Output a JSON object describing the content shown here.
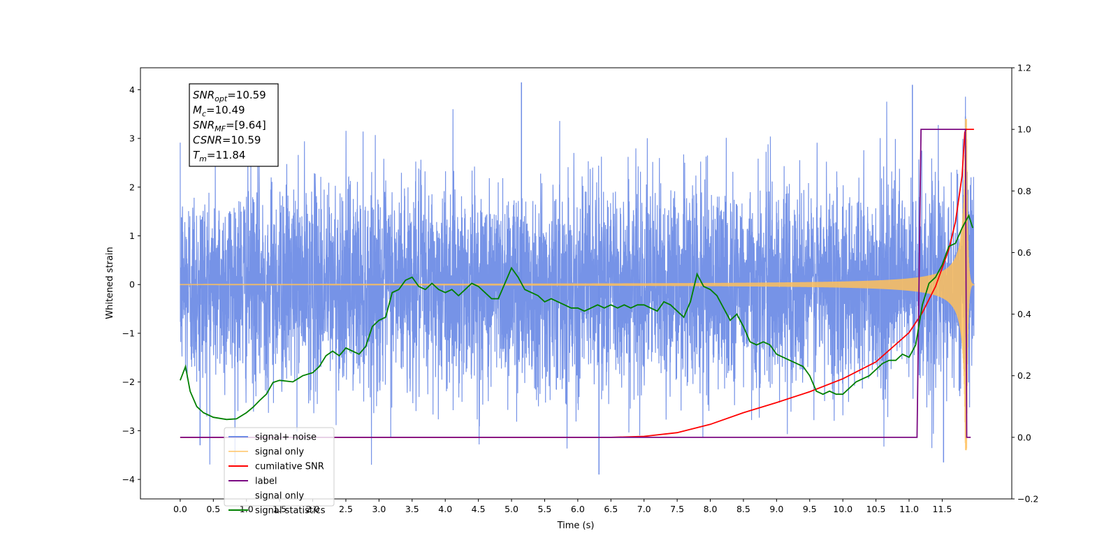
{
  "chart_data": {
    "type": "line",
    "xlabel": "Time (s)",
    "ylabel": "Whitened strain",
    "xlim": [
      -0.6,
      12.55
    ],
    "ylim": [
      -4.4,
      4.45
    ],
    "ylim_right": [
      -0.2,
      1.2
    ],
    "xticks": [
      "0.0",
      "0.5",
      "1.0",
      "1.5",
      "2.0",
      "2.5",
      "3.0",
      "3.5",
      "4.0",
      "4.5",
      "5.0",
      "5.5",
      "6.0",
      "6.5",
      "7.0",
      "7.5",
      "8.0",
      "8.5",
      "9.0",
      "9.5",
      "10.0",
      "10.5",
      "11.0",
      "11.5"
    ],
    "yticks": [
      "4",
      "3",
      "2",
      "1",
      "0",
      "−1",
      "−2",
      "−3",
      "−4"
    ],
    "yticks_right": [
      "1.2",
      "1.0",
      "0.8",
      "0.6",
      "0.4",
      "0.2",
      "0.0",
      "−0.2"
    ],
    "grid": false,
    "legend_position": "lower-left",
    "annotation": {
      "lines": [
        {
          "base": "SNR",
          "sub": "opt",
          "value": "=10.59"
        },
        {
          "base": "M",
          "sub": "c",
          "value": "=10.49"
        },
        {
          "base": "SNR",
          "sub": "MF",
          "value": "=[9.64]"
        },
        {
          "base": "CSNR",
          "sub": "",
          "value": "=10.59"
        },
        {
          "base": "T",
          "sub": "m",
          "value": "=11.84"
        }
      ]
    },
    "series": [
      {
        "name": "signal+ noise",
        "axis": "left",
        "color": "#6f8de6",
        "kind": "noise",
        "sigma": 1.0,
        "peak_markers": [
          {
            "x": 6.32,
            "y": -3.9
          },
          {
            "x": 11.05,
            "y": 4.1
          },
          {
            "x": 5.15,
            "y": 4.15
          },
          {
            "x": 11.85,
            "y": 3.45
          },
          {
            "x": 11.52,
            "y": -3.65
          },
          {
            "x": 0.3,
            "y": -3.3
          }
        ]
      },
      {
        "name": "signal only",
        "axis": "left",
        "color": "#ffbf5a",
        "kind": "chirp",
        "t0": 0.0,
        "tc": 11.87,
        "t_end": 11.98,
        "amp_end": 3.4
      },
      {
        "name": "cumilative SNR",
        "axis": "right",
        "color": "#ff0000",
        "x": [
          0.0,
          6.5,
          7.0,
          7.5,
          8.0,
          8.5,
          9.0,
          9.5,
          10.0,
          10.5,
          11.0,
          11.2,
          11.4,
          11.6,
          11.7,
          11.8,
          11.84,
          11.86,
          11.98
        ],
        "values": [
          0.0,
          0.0,
          0.003,
          0.015,
          0.042,
          0.08,
          0.113,
          0.148,
          0.19,
          0.245,
          0.34,
          0.405,
          0.49,
          0.61,
          0.7,
          0.85,
          0.99,
          1.0,
          1.0
        ]
      },
      {
        "name": "label",
        "axis": "right",
        "color": "#7b0a82",
        "x": [
          0.0,
          11.12,
          11.18,
          11.85,
          11.87,
          11.93
        ],
        "values": [
          0.0,
          0.0,
          1.0,
          1.0,
          0.0,
          0.0
        ]
      },
      {
        "name": "signal only",
        "axis": "right",
        "color": "#ffffff",
        "values": []
      },
      {
        "name": "signal statistics",
        "axis": "right",
        "color": "#008000",
        "x": [
          0.0,
          0.08,
          0.15,
          0.25,
          0.35,
          0.5,
          0.7,
          0.85,
          1.0,
          1.1,
          1.2,
          1.3,
          1.4,
          1.5,
          1.7,
          1.85,
          2.0,
          2.1,
          2.2,
          2.3,
          2.4,
          2.5,
          2.6,
          2.7,
          2.8,
          2.9,
          3.0,
          3.1,
          3.2,
          3.3,
          3.4,
          3.5,
          3.6,
          3.7,
          3.8,
          3.9,
          4.0,
          4.1,
          4.2,
          4.3,
          4.4,
          4.5,
          4.6,
          4.7,
          4.8,
          4.9,
          5.0,
          5.1,
          5.2,
          5.3,
          5.4,
          5.5,
          5.6,
          5.7,
          5.8,
          5.9,
          6.0,
          6.1,
          6.2,
          6.3,
          6.4,
          6.5,
          6.6,
          6.7,
          6.8,
          6.9,
          7.0,
          7.1,
          7.2,
          7.3,
          7.4,
          7.5,
          7.6,
          7.7,
          7.8,
          7.9,
          8.0,
          8.1,
          8.2,
          8.3,
          8.4,
          8.5,
          8.6,
          8.7,
          8.8,
          8.9,
          9.0,
          9.1,
          9.2,
          9.3,
          9.4,
          9.5,
          9.6,
          9.7,
          9.8,
          9.9,
          10.0,
          10.1,
          10.2,
          10.3,
          10.4,
          10.5,
          10.6,
          10.7,
          10.8,
          10.9,
          11.0,
          11.1,
          11.2,
          11.3,
          11.4,
          11.5,
          11.6,
          11.7,
          11.8,
          11.9,
          11.96
        ],
        "values": [
          0.185,
          0.23,
          0.15,
          0.1,
          0.08,
          0.065,
          0.058,
          0.06,
          0.08,
          0.098,
          0.12,
          0.14,
          0.178,
          0.185,
          0.18,
          0.2,
          0.21,
          0.23,
          0.265,
          0.28,
          0.265,
          0.29,
          0.28,
          0.27,
          0.295,
          0.36,
          0.38,
          0.39,
          0.47,
          0.48,
          0.51,
          0.52,
          0.49,
          0.48,
          0.5,
          0.48,
          0.47,
          0.48,
          0.46,
          0.48,
          0.5,
          0.49,
          0.47,
          0.45,
          0.45,
          0.5,
          0.55,
          0.52,
          0.48,
          0.47,
          0.46,
          0.44,
          0.45,
          0.44,
          0.43,
          0.42,
          0.42,
          0.41,
          0.42,
          0.43,
          0.42,
          0.43,
          0.42,
          0.43,
          0.42,
          0.43,
          0.43,
          0.42,
          0.41,
          0.44,
          0.43,
          0.41,
          0.39,
          0.44,
          0.53,
          0.49,
          0.48,
          0.46,
          0.42,
          0.38,
          0.4,
          0.36,
          0.31,
          0.3,
          0.31,
          0.3,
          0.27,
          0.26,
          0.25,
          0.24,
          0.23,
          0.2,
          0.15,
          0.14,
          0.15,
          0.14,
          0.14,
          0.16,
          0.18,
          0.19,
          0.2,
          0.22,
          0.24,
          0.25,
          0.25,
          0.27,
          0.26,
          0.3,
          0.43,
          0.5,
          0.52,
          0.56,
          0.62,
          0.63,
          0.68,
          0.72,
          0.68
        ]
      }
    ]
  }
}
